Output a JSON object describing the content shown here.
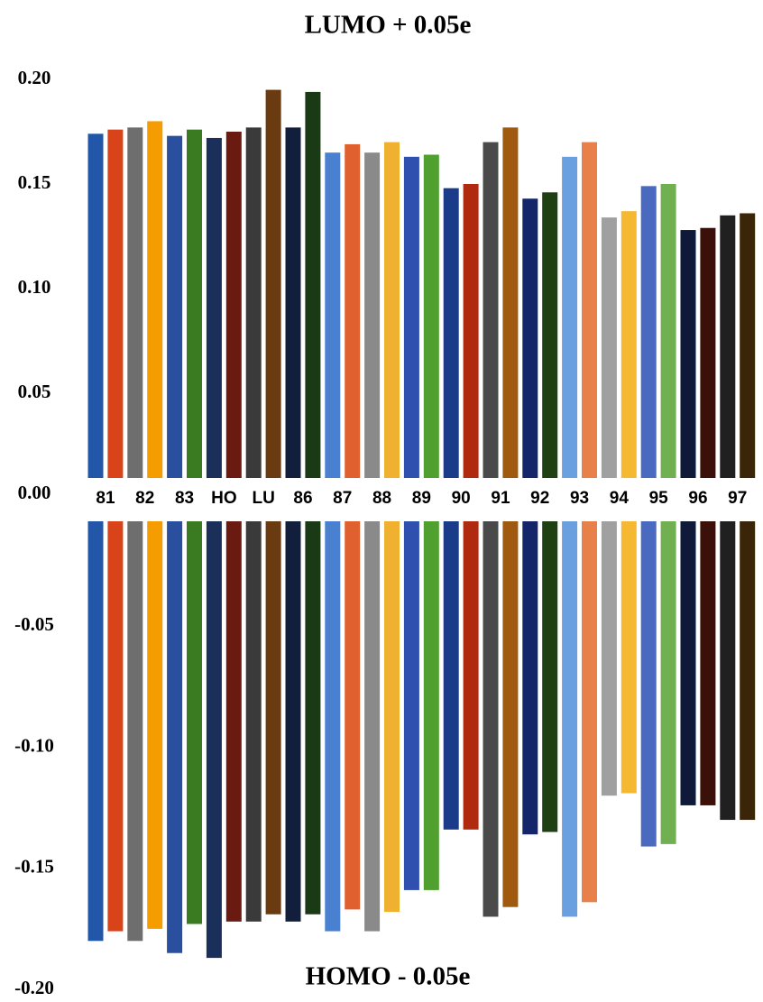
{
  "chart_data": {
    "type": "bar",
    "categories": [
      "81",
      null,
      "82",
      null,
      "83",
      null,
      "HO",
      null,
      "LU",
      null,
      "86",
      null,
      "87",
      null,
      "88",
      null,
      "89",
      null,
      "90",
      null,
      "91",
      null,
      "92",
      null,
      "93",
      null,
      "94",
      null,
      "95",
      null,
      "96",
      null,
      "97",
      null
    ],
    "colors": [
      "#2156a8",
      "#d8431a",
      "#6e6e6e",
      "#f59c00",
      "#2a4f9e",
      "#3a7a20",
      "#1a2f5a",
      "#6a1a10",
      "#3a3a3a",
      "#6a3a10",
      "#121f3c",
      "#1a3a15",
      "#4a80d0",
      "#e06030",
      "#8a8a8a",
      "#f0b030",
      "#3050b0",
      "#50a030",
      "#1a3a8a",
      "#b02a10",
      "#4a4a4a",
      "#a05a10",
      "#15256a",
      "#1e4012",
      "#6aa0e0",
      "#e8804a",
      "#a0a0a0",
      "#f5b830",
      "#4a6ac0",
      "#70b050",
      "#0f1a3a",
      "#3a1008",
      "#202020",
      "#3a2508"
    ],
    "series": [
      {
        "name": "LUMO + 0.05e",
        "ylim": [
          0,
          0.2
        ],
        "values": [
          0.174,
          0.176,
          0.177,
          0.18,
          0.173,
          0.176,
          0.172,
          0.175,
          0.177,
          0.195,
          0.177,
          0.194,
          0.165,
          0.169,
          0.165,
          0.17,
          0.163,
          0.164,
          0.148,
          0.15,
          0.17,
          0.177,
          0.143,
          0.146,
          0.163,
          0.17,
          0.134,
          0.137,
          0.149,
          0.15,
          0.128,
          0.129,
          0.135,
          0.136
        ]
      },
      {
        "name": "HOMO - 0.05e",
        "ylim": [
          -0.2,
          0
        ],
        "values": [
          -0.18,
          -0.176,
          -0.18,
          -0.175,
          -0.185,
          -0.173,
          -0.187,
          -0.172,
          -0.172,
          -0.169,
          -0.172,
          -0.169,
          -0.176,
          -0.167,
          -0.176,
          -0.168,
          -0.159,
          -0.159,
          -0.134,
          -0.134,
          -0.17,
          -0.166,
          -0.136,
          -0.135,
          -0.17,
          -0.164,
          -0.12,
          -0.119,
          -0.141,
          -0.14,
          -0.124,
          -0.124,
          -0.13,
          -0.13
        ]
      }
    ],
    "yticks": [
      {
        "value": 0.2,
        "label": "0.20"
      },
      {
        "value": 0.15,
        "label": "0.15"
      },
      {
        "value": 0.1,
        "label": "0.10"
      },
      {
        "value": 0.05,
        "label": "0.05"
      },
      {
        "value": 0,
        "label": "0.00"
      },
      {
        "value": -0.05,
        "label": "-0.05"
      },
      {
        "value": -0.1,
        "label": "-0.10"
      },
      {
        "value": -0.15,
        "label": "-0.15"
      },
      {
        "value": -0.2,
        "label": "-0.20"
      }
    ]
  }
}
